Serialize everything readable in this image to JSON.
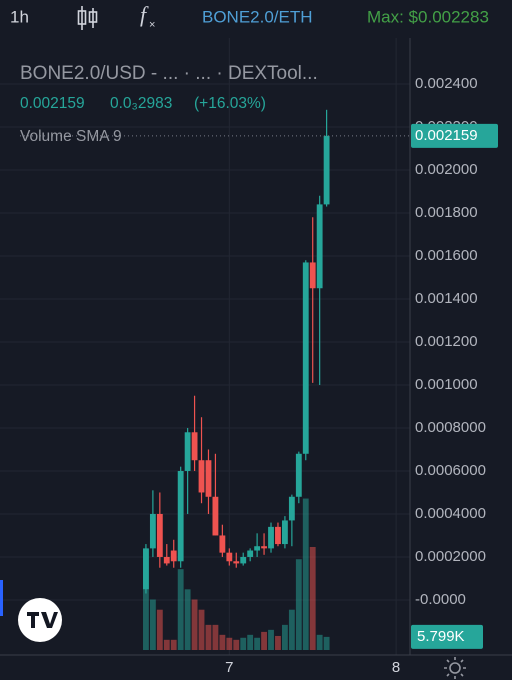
{
  "toolbar": {
    "interval": "1h",
    "symbol": "BONE2.0/ETH",
    "max": "Max: $0.002283"
  },
  "chart_data": {
    "type": "candlestick",
    "title": "BONE2.0/USD - ... · ... · DEXTool...",
    "change": "0.0₃2983",
    "change_percent": "(+16.03%)",
    "indicator": "Volume SMA 9",
    "colors": {
      "up": "#26a69a",
      "down": "#ef5350"
    },
    "open": [
      5e-05,
      0.00024,
      0.0004,
      0.0002,
      0.00023,
      0.00018,
      0.0006,
      0.00078,
      0.00065,
      0.00065,
      0.00048,
      0.0003,
      0.00022,
      0.00018,
      0.00017,
      0.0002,
      0.00023,
      0.00025,
      0.00024,
      0.00034,
      0.00026,
      0.00037,
      0.00048,
      0.00068,
      0.00157,
      0.00145,
      0.00184
    ],
    "high": [
      0.00026,
      0.00051,
      0.0005,
      0.00026,
      0.00028,
      0.00062,
      0.0008,
      0.00095,
      0.00085,
      0.0007,
      0.00068,
      0.00035,
      0.00024,
      0.00022,
      0.00022,
      0.00024,
      0.00031,
      0.00031,
      0.00036,
      0.00036,
      0.00039,
      0.00049,
      0.00069,
      0.00158,
      0.00178,
      0.00188,
      0.00228
    ],
    "low": [
      3e-05,
      0.0002,
      0.00015,
      0.00016,
      0.00015,
      0.00015,
      0.0004,
      0.0006,
      0.00045,
      0.0004,
      0.0003,
      0.0002,
      0.00016,
      0.00015,
      0.00016,
      0.00018,
      0.0002,
      0.00021,
      0.00022,
      0.00025,
      0.00024,
      0.00025,
      0.00045,
      0.00065,
      0.00101,
      0.001,
      0.00183
    ],
    "close": [
      0.00024,
      0.0004,
      0.0002,
      0.00017,
      0.00018,
      0.0006,
      0.00078,
      0.00065,
      0.0005,
      0.00048,
      0.0003,
      0.00022,
      0.00018,
      0.00017,
      0.0002,
      0.00023,
      0.00025,
      0.00024,
      0.00034,
      0.00026,
      0.00037,
      0.00048,
      0.00068,
      0.00157,
      0.00145,
      0.00184,
      0.002159
    ],
    "volume": {
      "values": [
        44600,
        22300,
        17800,
        4500,
        4500,
        35700,
        26800,
        22300,
        17800,
        11100,
        11100,
        6700,
        5400,
        4500,
        5400,
        6700,
        5400,
        8000,
        8900,
        6200,
        11100,
        17800,
        40100,
        66900,
        45500,
        6700,
        5799
      ],
      "value_labels": [
        null,
        null,
        null,
        null,
        null,
        null,
        null,
        null,
        null,
        null,
        null,
        null,
        null,
        null,
        null,
        null,
        null,
        null,
        null,
        null,
        null,
        null,
        null,
        null,
        null,
        null,
        "5.799K"
      ]
    },
    "xlim": [
      -21,
      38
    ],
    "xticks": [
      {
        "value": 12,
        "label": "7"
      },
      {
        "value": 36,
        "label": "8"
      }
    ],
    "ylim": [
      -0.000256,
      0.002614
    ],
    "yticks": [
      {
        "value": 0.0024,
        "label": "0.002400"
      },
      {
        "value": 0.0022,
        "label": "0.002200"
      },
      {
        "value": 0.002,
        "label": "0.002000"
      },
      {
        "value": 0.0018,
        "label": "0.001800"
      },
      {
        "value": 0.0016,
        "label": "0.001600"
      },
      {
        "value": 0.0014,
        "label": "0.001400"
      },
      {
        "value": 0.0012,
        "label": "0.001200"
      },
      {
        "value": 0.001,
        "label": "0.001000"
      },
      {
        "value": 0.0008,
        "label": "0.0008000"
      },
      {
        "value": 0.0006,
        "label": "0.0006000"
      },
      {
        "value": 0.0004,
        "label": "0.0004000"
      },
      {
        "value": 0.0002,
        "label": "0.0002000"
      },
      {
        "value": 0,
        "label": "-0.0000"
      }
    ],
    "y2lim": [
      0,
      250000
    ],
    "grid": true
  }
}
